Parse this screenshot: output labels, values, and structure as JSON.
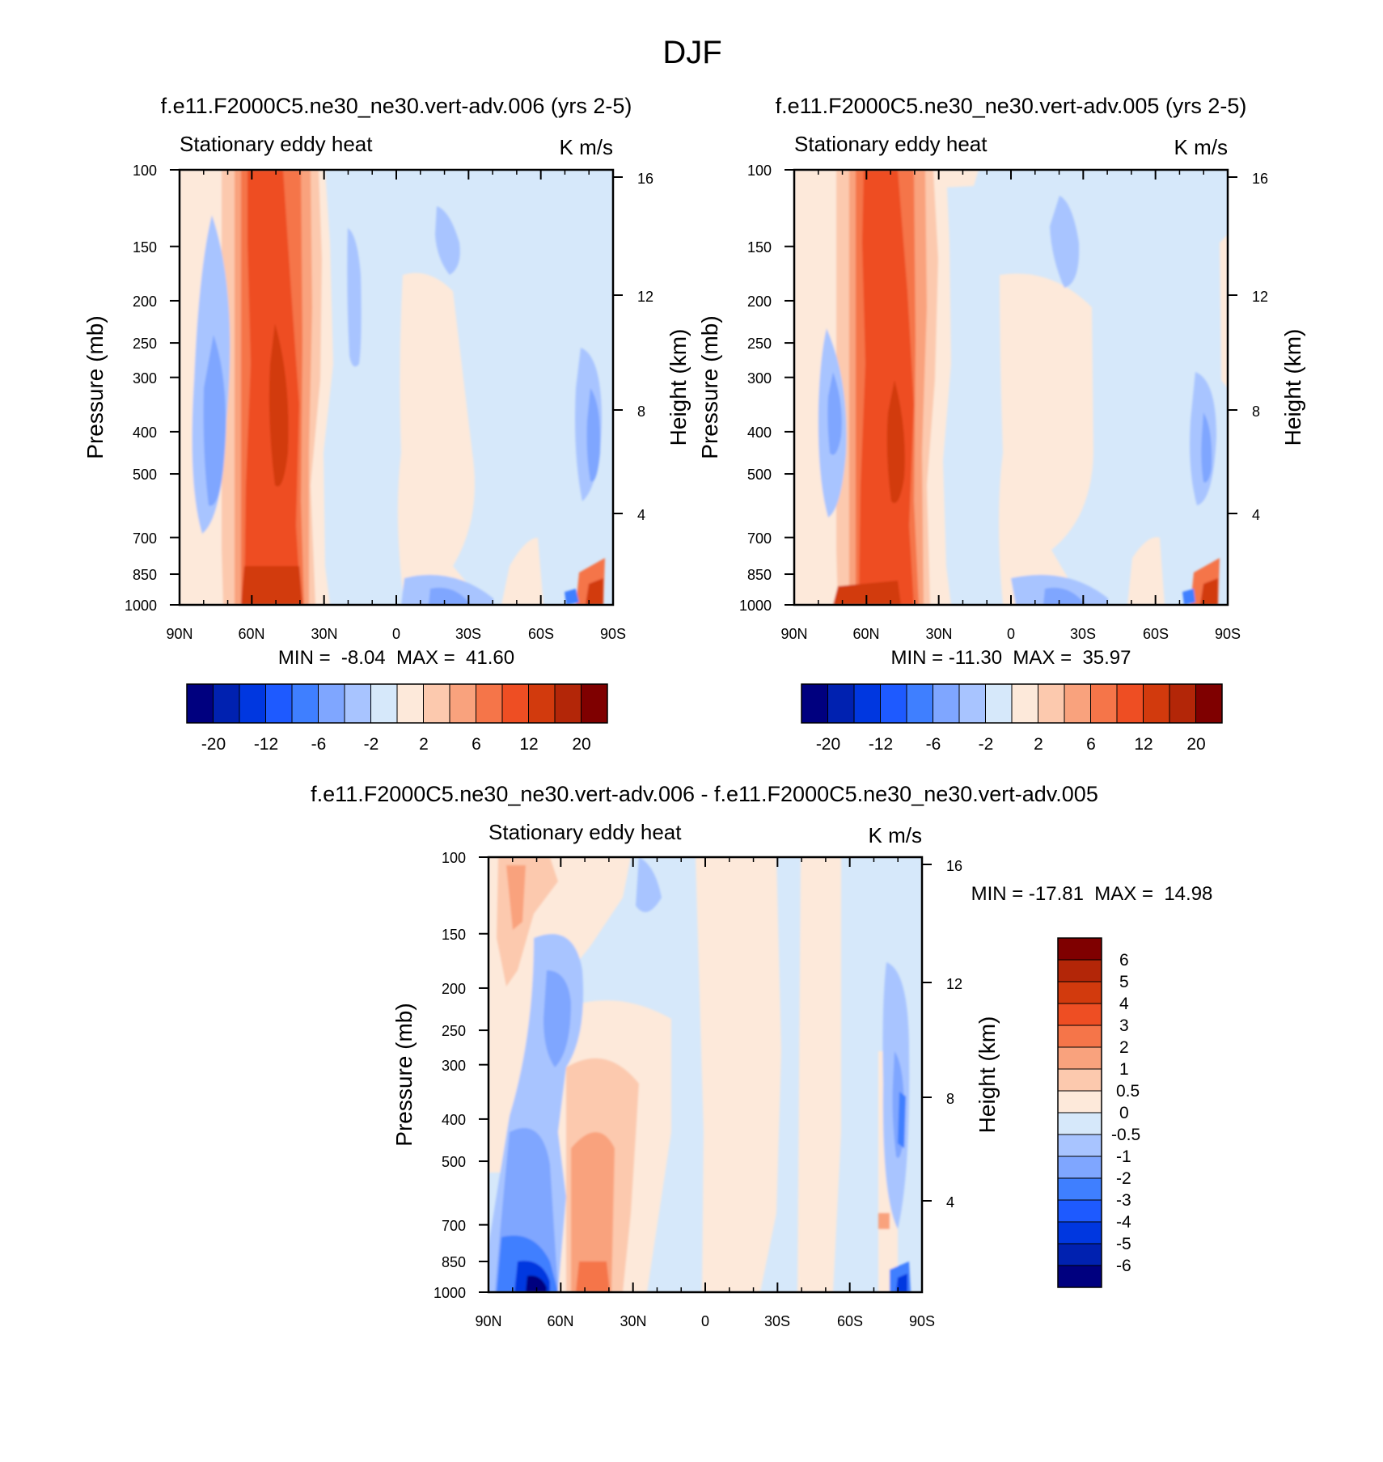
{
  "figure_title": "DJF",
  "colors": {
    "panel_background": "#D6E8FA",
    "main_palette": [
      "#00007F",
      "#0021B0",
      "#0037E0",
      "#1E5AFF",
      "#3F7FFF",
      "#7FA6FF",
      "#A8C4FF",
      "#D6E8FA",
      "#FDE9DA",
      "#FCC9AE",
      "#F9A27D",
      "#F57549",
      "#EE4E23",
      "#D23A0D",
      "#B32608",
      "#7F0000"
    ],
    "diff_palette": [
      "#00007F",
      "#0021B0",
      "#0037E0",
      "#1E5AFF",
      "#3F7FFF",
      "#7FA6FF",
      "#A8C4FF",
      "#D6E8FA",
      "#FDE9DA",
      "#FCC9AE",
      "#F9A27D",
      "#F57549",
      "#EE4E23",
      "#D23A0D",
      "#B32608",
      "#7F0000"
    ]
  },
  "chart_data": [
    {
      "type": "contour",
      "title": "f.e11.F2000C5.ne30_ne30.vert-adv.006 (yrs 2-5)",
      "left_string": "Stationary eddy heat",
      "right_string": "K m/s",
      "ylabel": "Pressure (mb)",
      "ylabel_right": "Height (km)",
      "x_ticks": [
        "90N",
        "60N",
        "30N",
        "0",
        "30S",
        "60S",
        "90S"
      ],
      "y_ticks": [
        "100",
        "150",
        "200",
        "250",
        "300",
        "400",
        "500",
        "700",
        "850",
        "1000"
      ],
      "y_right_ticks": [
        "16",
        "12",
        "8",
        "4"
      ],
      "stats": "MIN =  -8.04  MAX =  41.60",
      "min": -8.04,
      "max": 41.6,
      "colorbar_labels": [
        "-20",
        "-12",
        "-6",
        "-2",
        "2",
        "6",
        "12",
        "20"
      ]
    },
    {
      "type": "contour",
      "title": "f.e11.F2000C5.ne30_ne30.vert-adv.005 (yrs 2-5)",
      "left_string": "Stationary eddy heat",
      "right_string": "K m/s",
      "ylabel": "Pressure (mb)",
      "ylabel_right": "Height (km)",
      "x_ticks": [
        "90N",
        "60N",
        "30N",
        "0",
        "30S",
        "60S",
        "90S"
      ],
      "y_ticks": [
        "100",
        "150",
        "200",
        "250",
        "300",
        "400",
        "500",
        "700",
        "850",
        "1000"
      ],
      "y_right_ticks": [
        "16",
        "12",
        "8",
        "4"
      ],
      "stats": "MIN = -11.30  MAX =  35.97",
      "min": -11.3,
      "max": 35.97,
      "colorbar_labels": [
        "-20",
        "-12",
        "-6",
        "-2",
        "2",
        "6",
        "12",
        "20"
      ]
    },
    {
      "type": "contour",
      "title": "f.e11.F2000C5.ne30_ne30.vert-adv.006 - f.e11.F2000C5.ne30_ne30.vert-adv.005",
      "left_string": "Stationary eddy heat",
      "right_string": "K m/s",
      "ylabel": "Pressure (mb)",
      "ylabel_right": "Height (km)",
      "x_ticks": [
        "90N",
        "60N",
        "30N",
        "0",
        "30S",
        "60S",
        "90S"
      ],
      "y_ticks": [
        "100",
        "150",
        "200",
        "250",
        "300",
        "400",
        "500",
        "700",
        "850",
        "1000"
      ],
      "y_right_ticks": [
        "16",
        "12",
        "8",
        "4"
      ],
      "stats": "MIN = -17.81  MAX =  14.98",
      "min": -17.81,
      "max": 14.98,
      "colorbar_labels": [
        "6",
        "5",
        "4",
        "3",
        "2",
        "1",
        "0.5",
        "0",
        "-0.5",
        "-1",
        "-2",
        "-3",
        "-4",
        "-5",
        "-6"
      ]
    }
  ]
}
